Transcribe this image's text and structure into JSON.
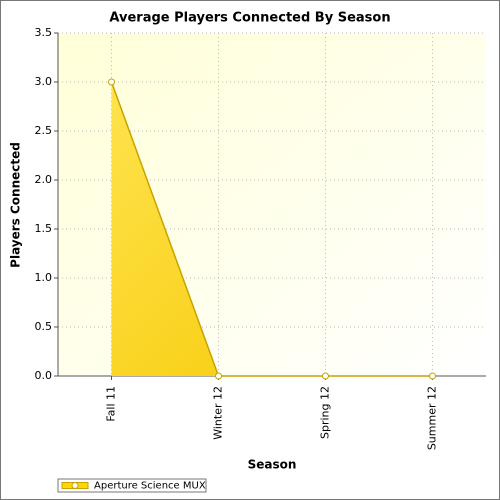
{
  "chart_data": {
    "type": "area",
    "title": "Average Players Connected By Season",
    "x_label": "Season",
    "y_label": "Players Connected",
    "categories": [
      "Fall 11",
      "Winter 12",
      "Spring 12",
      "Summer 12"
    ],
    "series": [
      {
        "name": "Aperture Science MUX",
        "color": "#ffd700",
        "line_color": "#c9a200",
        "values": [
          3,
          0,
          0,
          0
        ]
      }
    ],
    "ylim": [
      0,
      3.5
    ],
    "yticks": [
      {
        "value": 0,
        "label": "0.0"
      },
      0.5,
      {
        "value": 1,
        "label": "1.0"
      },
      1.5,
      {
        "value": 2,
        "label": "2.0"
      },
      2.5,
      {
        "value": 3,
        "label": "3.0"
      },
      3.5
    ],
    "grid": true,
    "legend": "bottom-left"
  }
}
